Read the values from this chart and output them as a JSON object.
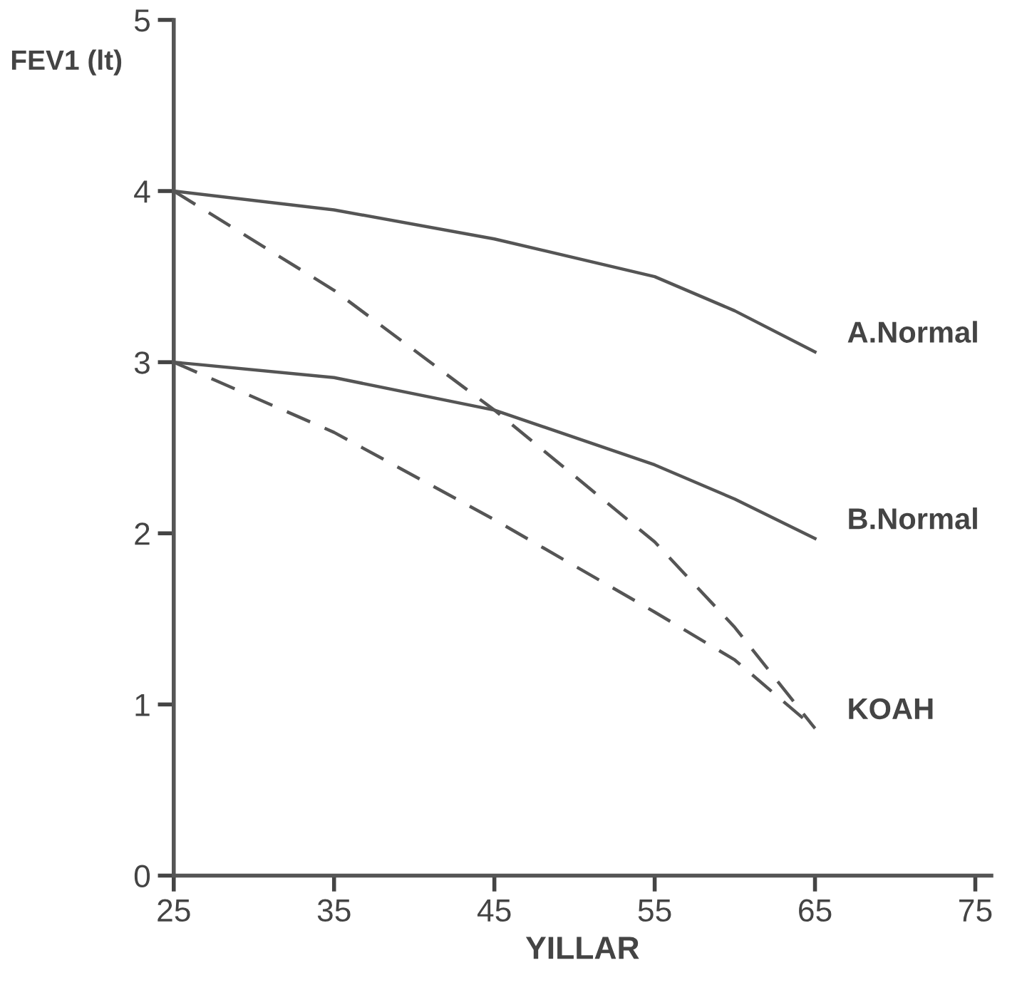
{
  "chart_data": {
    "type": "line",
    "xlabel": "YILLAR",
    "ylabel": "FEV1 (lt)",
    "x": [
      25,
      35,
      45,
      55,
      60,
      65
    ],
    "series": [
      {
        "name": "A.Normal",
        "color": "#555555",
        "line_style": "solid",
        "values": [
          4.0,
          3.89,
          3.72,
          3.5,
          3.3,
          3.06
        ]
      },
      {
        "name": "B.Normal",
        "color": "#555555",
        "line_style": "solid",
        "values": [
          3.0,
          2.91,
          2.72,
          2.4,
          2.2,
          1.97
        ]
      },
      {
        "name": "KOAH",
        "color": "#555555",
        "line_style": "dashed",
        "values": [
          4.0,
          3.42,
          2.72,
          1.95,
          1.45,
          0.86
        ]
      },
      {
        "color": "#555555",
        "line_style": "dashed",
        "values": [
          3.0,
          2.59,
          2.08,
          1.54,
          1.26,
          0.86
        ]
      }
    ],
    "xlim": [
      25,
      76
    ],
    "xticks": [
      25,
      35,
      45,
      55,
      65,
      75
    ],
    "ylim": [
      0,
      5
    ],
    "yticks": [
      0,
      1,
      2,
      3,
      4,
      5
    ],
    "grid": false,
    "legend": false,
    "marker": "none"
  }
}
